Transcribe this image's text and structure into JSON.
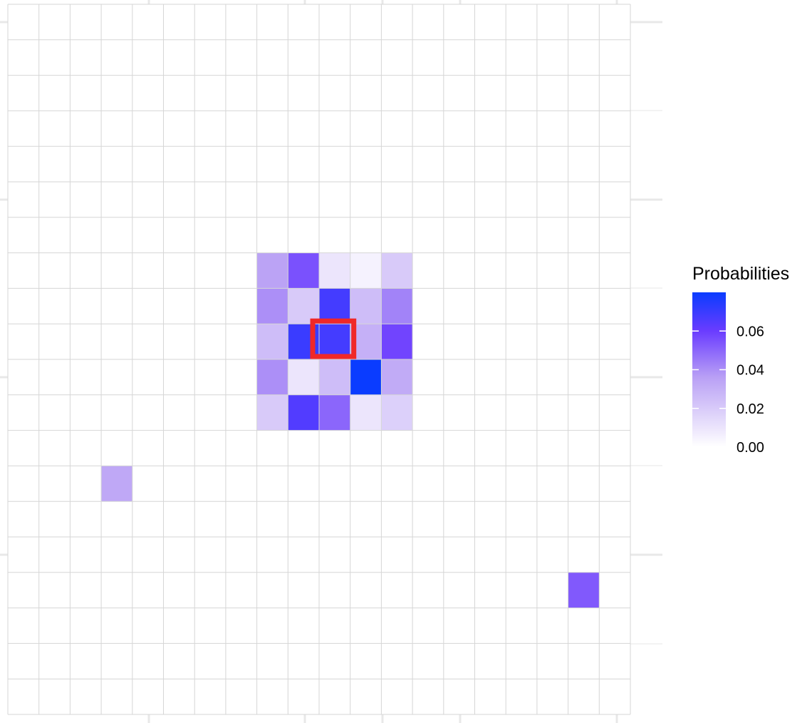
{
  "chart_data": {
    "type": "heatmap",
    "n_cols": 20,
    "n_rows": 20,
    "grid": true,
    "legend_position": "right",
    "colors": {
      "low": "#ffffff",
      "high": "#0a3cff",
      "mid_hue": "#6a3cff",
      "grid": "#d6d6d6",
      "highlight": "#f02828"
    },
    "legend": {
      "title": "Probabilities",
      "range": [
        0,
        0.08
      ],
      "ticks": [
        {
          "value": 0.06,
          "label": "0.06"
        },
        {
          "value": 0.04,
          "label": "0.04"
        },
        {
          "value": 0.02,
          "label": "0.02"
        },
        {
          "value": 0.0,
          "label": "0.00"
        }
      ]
    },
    "cells": [
      {
        "col": 8,
        "row": 7,
        "value": 0.035
      },
      {
        "col": 9,
        "row": 7,
        "value": 0.055
      },
      {
        "col": 10,
        "row": 7,
        "value": 0.01
      },
      {
        "col": 11,
        "row": 7,
        "value": 0.005
      },
      {
        "col": 12,
        "row": 7,
        "value": 0.02
      },
      {
        "col": 8,
        "row": 8,
        "value": 0.04
      },
      {
        "col": 9,
        "row": 8,
        "value": 0.02
      },
      {
        "col": 10,
        "row": 8,
        "value": 0.068
      },
      {
        "col": 11,
        "row": 8,
        "value": 0.025
      },
      {
        "col": 12,
        "row": 8,
        "value": 0.043
      },
      {
        "col": 8,
        "row": 9,
        "value": 0.025
      },
      {
        "col": 9,
        "row": 9,
        "value": 0.07
      },
      {
        "col": 10,
        "row": 9,
        "value": 0.068
      },
      {
        "col": 11,
        "row": 9,
        "value": 0.03
      },
      {
        "col": 12,
        "row": 9,
        "value": 0.058
      },
      {
        "col": 8,
        "row": 10,
        "value": 0.04
      },
      {
        "col": 9,
        "row": 10,
        "value": 0.01
      },
      {
        "col": 10,
        "row": 10,
        "value": 0.025
      },
      {
        "col": 11,
        "row": 10,
        "value": 0.08
      },
      {
        "col": 12,
        "row": 10,
        "value": 0.032
      },
      {
        "col": 8,
        "row": 11,
        "value": 0.02
      },
      {
        "col": 9,
        "row": 11,
        "value": 0.065
      },
      {
        "col": 10,
        "row": 11,
        "value": 0.05
      },
      {
        "col": 11,
        "row": 11,
        "value": 0.01
      },
      {
        "col": 12,
        "row": 11,
        "value": 0.018
      },
      {
        "col": 3,
        "row": 13,
        "value": 0.033
      },
      {
        "col": 18,
        "row": 16,
        "value": 0.053
      }
    ],
    "highlight": {
      "col": 10,
      "row": 9
    }
  }
}
